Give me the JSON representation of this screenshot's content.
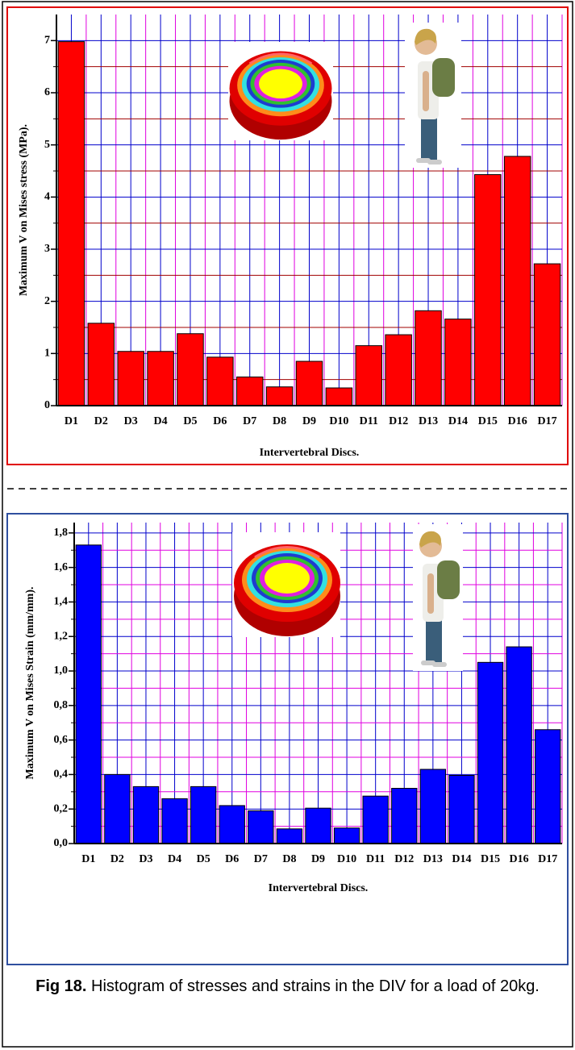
{
  "chart_data": [
    {
      "type": "bar",
      "xlabel": "Intervertebral Discs.",
      "ylabel": "Maximum V on Mises stress (MPa).",
      "categories": [
        "D1",
        "D2",
        "D3",
        "D4",
        "D5",
        "D6",
        "D7",
        "D8",
        "D9",
        "D10",
        "D11",
        "D12",
        "D13",
        "D14",
        "D15",
        "D16",
        "D17"
      ],
      "values": [
        6.98,
        1.58,
        1.04,
        1.04,
        1.38,
        0.93,
        0.55,
        0.36,
        0.85,
        0.34,
        1.15,
        1.36,
        1.82,
        1.66,
        4.43,
        4.78,
        2.72
      ],
      "color": "#ff0000",
      "ylim": [
        0,
        7.5
      ],
      "yticks": [
        0,
        1,
        2,
        3,
        4,
        5,
        6,
        7
      ],
      "minor_yticks": [
        0.5,
        1.5,
        2.5,
        3.5,
        4.5,
        5.5,
        6.5
      ],
      "grid": true
    },
    {
      "type": "bar",
      "xlabel": "Intervertebral Discs.",
      "ylabel": "Maximum V on Mises Strain (mm/mm).",
      "categories": [
        "D1",
        "D2",
        "D3",
        "D4",
        "D5",
        "D6",
        "D7",
        "D8",
        "D9",
        "D10",
        "D11",
        "D12",
        "D13",
        "D14",
        "D15",
        "D16",
        "D17"
      ],
      "values": [
        1.73,
        0.4,
        0.33,
        0.26,
        0.33,
        0.22,
        0.19,
        0.085,
        0.205,
        0.09,
        0.275,
        0.32,
        0.43,
        0.395,
        1.05,
        1.14,
        0.66
      ],
      "color": "#0000ff",
      "ylim": [
        0,
        1.86
      ],
      "yticks": [
        {
          "value": 0,
          "label": "0,0"
        },
        {
          "value": 0.2,
          "label": "0,2"
        },
        {
          "value": 0.4,
          "label": "0,4"
        },
        {
          "value": 0.6,
          "label": "0,6"
        },
        {
          "value": 0.8,
          "label": "0,8"
        },
        {
          "value": 1.0,
          "label": "1,0"
        },
        {
          "value": 1.2,
          "label": "1,2"
        },
        {
          "value": 1.4,
          "label": "1,4"
        },
        {
          "value": 1.6,
          "label": "1,6"
        },
        {
          "value": 1.8,
          "label": "1,8"
        }
      ],
      "minor_yticks": [
        0.1,
        0.3,
        0.5,
        0.7,
        0.9,
        1.1,
        1.3,
        1.5,
        1.7
      ],
      "grid": true
    }
  ],
  "caption": {
    "label": "Fig 18.",
    "text": "Histogram of stresses and strains in the DIV for a load of 20kg."
  }
}
